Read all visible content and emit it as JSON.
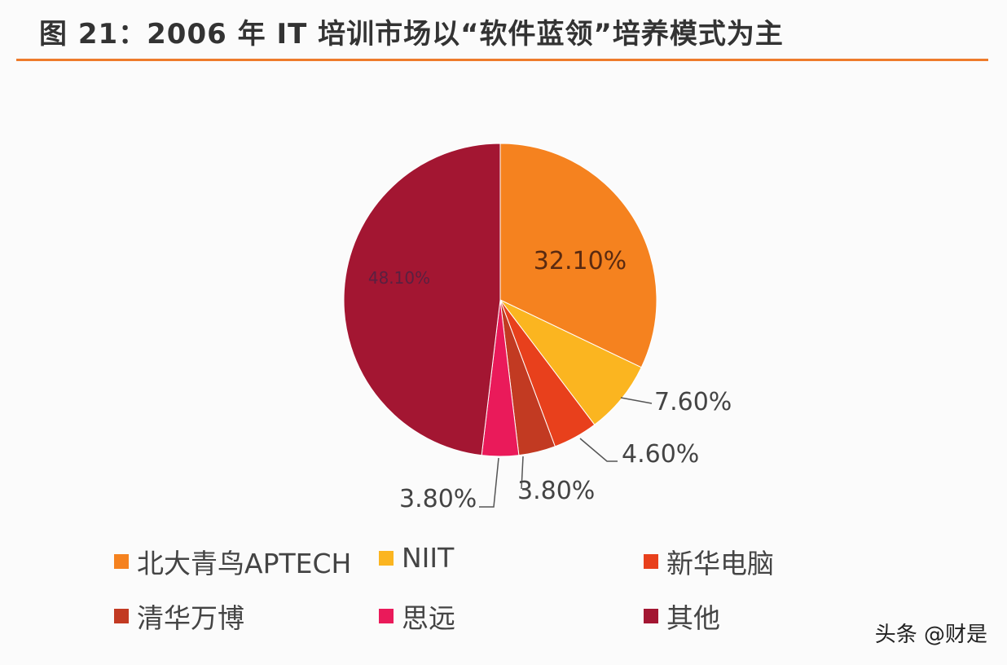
{
  "title": "图 21：2006 年 IT 培训市场以“软件蓝领”培养模式为主",
  "watermark": "头条 @财是",
  "chart_data": {
    "type": "pie",
    "title": "图 21：2006 年 IT 培训市场以“软件蓝领”培养模式为主",
    "legend_position": "bottom",
    "slices": [
      {
        "name": "北大青鸟APTECH",
        "value": 32.1,
        "label": "32.10%",
        "color": "#f5821f"
      },
      {
        "name": "NIIT",
        "value": 7.6,
        "label": "7.60%",
        "color": "#fbb520"
      },
      {
        "name": "新华电脑",
        "value": 4.6,
        "label": "4.60%",
        "color": "#e8401c"
      },
      {
        "name": "清华万博",
        "value": 3.8,
        "label": "3.80%",
        "color": "#c23a22"
      },
      {
        "name": "思远",
        "value": 3.8,
        "label": "3.80%",
        "color": "#ea1a5a"
      },
      {
        "name": "其他",
        "value": 48.1,
        "label": "48.10%",
        "color": "#a31632"
      }
    ]
  }
}
